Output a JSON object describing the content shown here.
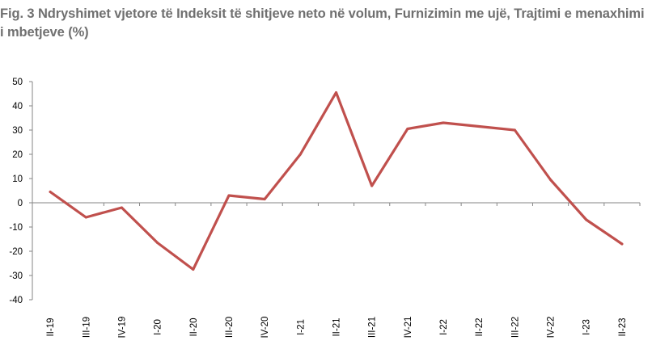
{
  "chart_data": {
    "type": "line",
    "title": "Fig. 3 Ndryshimet vjetore të Indeksit të shitjeve neto në volum, Furnizimin me ujë, Trajtimi e menaxhimi i mbetjeve (%)",
    "xlabel": "",
    "ylabel": "",
    "categories": [
      "II-19",
      "III-19",
      "IV-19",
      "I-20",
      "II-20",
      "III-20",
      "IV-20",
      "I-21",
      "II-21",
      "III-21",
      "IV-21",
      "I-22",
      "II-22",
      "III-22",
      "IV-22",
      "I-23",
      "II-23"
    ],
    "series": [
      {
        "values": [
          4.5,
          -6,
          -2,
          -16.5,
          -27.5,
          3,
          1.5,
          20,
          45.5,
          7,
          30.5,
          33,
          31.5,
          30,
          9.5,
          -7,
          -17
        ],
        "color": "#c0504d"
      }
    ],
    "ylim": [
      -40,
      50
    ],
    "yticks": [
      50,
      40,
      30,
      20,
      10,
      0,
      -10,
      -20,
      -30,
      -40
    ],
    "grid": false,
    "legend": "none"
  }
}
